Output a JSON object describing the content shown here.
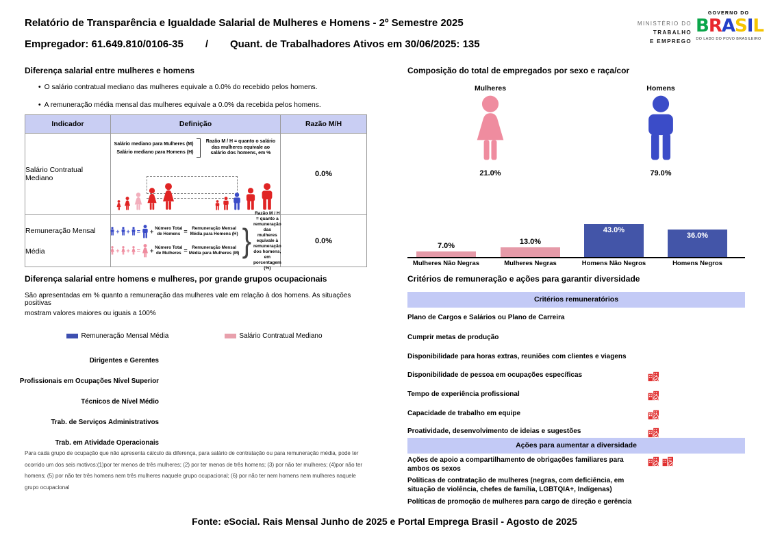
{
  "colors": {
    "band_lavender": "#c3caf6",
    "table_header_lavender": "#c9cef3",
    "table_border": "#9a9a9a",
    "bar_pink": "#e59aa8",
    "bar_blue": "#4355a8",
    "pictogram_pink": "#ef8c9f",
    "pictogram_blue": "#3b4cc8",
    "figure_red": "#e02424",
    "figure_light_pink": "#f2aebc",
    "building_icon_red": "#e03030",
    "legend_blue": "#3d4fb0",
    "legend_pink": "#e8a0ac"
  },
  "header": {
    "title": "Relatório de Transparência e Igualdade Salarial de Mulheres e Homens - 2º Semestre 2025",
    "employer": "Empregador: 61.649.810/0106-35",
    "separator": "/",
    "workers": "Quant. de Trabalhadores Ativos em 30/06/2025: 135",
    "ministry_line1": "MINISTÉRIO DO",
    "ministry_line2": "TRABALHO",
    "ministry_line3": "E EMPREGO",
    "gov_top": "GOVERNO DO",
    "brasil_letters": [
      "B",
      "R",
      "A",
      "S",
      "I",
      "L"
    ],
    "gov_bottom": "DO LADO DO POVO BRASILEIRO"
  },
  "salary_gap": {
    "title": "Diferença salarial entre mulheres e homens",
    "bullets": [
      "O salário contratual mediano das mulheres equivale a 0.0% do recebido pelos homens.",
      "A remuneração média mensal das mulheres equivale a 0.0% da recebida pelos homens."
    ],
    "table": {
      "headers": [
        "Indicador",
        "Definição",
        "Razão M/H"
      ],
      "row1": {
        "indicator": "Salário Contratual Mediano",
        "label_women": "Salário mediano para Mulheres (M)",
        "label_men": "Salário mediano para Homens (H)",
        "ratio_note": "Razão M / H = quanto o salário das mulheres equivale ao salário dos homens, em %",
        "ratio": "0.0%"
      },
      "row2": {
        "indicator": "Remuneração Mensal Média",
        "plus": "+",
        "equals": "=",
        "men_total": "Número Total de Homens",
        "men_result": "Remuneração Mensal Média para Homens (H)",
        "women_total": "Número Total de Mulheres",
        "women_result": "Remuneração Mensal Média para Mulheres (M)",
        "ratio_note": "Razão M / H = quanto a remuneração das mulheres equivale à remuneração dos homens, em porcentagem (%)",
        "ratio": "0.0%"
      }
    }
  },
  "composition": {
    "title": "Composição do total de empregados por sexo e raça/cor",
    "female_label": "Mulheres",
    "female_value": "21.0%",
    "male_label": "Homens",
    "male_value": "79.0%",
    "race_chart": {
      "categories": [
        "Mulheres Não Negras",
        "Mulheres Negras",
        "Homens Não Negros",
        "Homens Negros"
      ],
      "values": [
        7,
        13,
        43,
        36
      ],
      "labels": [
        "7.0%",
        "13.0%",
        "43.0%",
        "36.0%"
      ]
    }
  },
  "occupational": {
    "title": "Diferença salarial entre homens e mulheres, por grande grupos ocupacionais",
    "subtitle_line1": "São apresentadas em % quanto a remuneração das mulheres vale em relação à dos homens. As situações positivas",
    "subtitle_line2": "mostram valores maiores ou iguais a 100%",
    "legend": [
      {
        "label": "Remuneração Mensal Média"
      },
      {
        "label": "Salário Contratual Mediano"
      }
    ],
    "categories": [
      "Dirigentes e Gerentes",
      "Profissionais em Ocupações Nível Superior",
      "Técnicos de Nível Médio",
      "Trab. de Serviços Administrativos",
      "Trab. em Atividade Operacionais"
    ],
    "footnote": "Para cada grupo de ocupação que não apresenta cálculo da diferença, para salário de contratação ou para remuneração média, pode ter ocorrido um dos seis motivos:(1)por ter menos de três mulheres; (2) por ter menos de três homens; (3) por não ter mulheres; (4)por não ter homens; (5) por não ter três homens nem três mulheres naquele grupo ocupacional; (6) por não ter nem homens nem mulheres naquele grupo ocupacional"
  },
  "criteria": {
    "title": "Critérios de remuneração e ações para garantir diversidade",
    "band1": "Critérios remuneratórios",
    "items1": [
      {
        "label": "Plano de Cargos e Salários ou Plano de Carreira",
        "icons": 0
      },
      {
        "label": "Cumprir metas de produção",
        "icons": 0
      },
      {
        "label": "Disponibilidade para horas extras, reuniões com clientes e viagens",
        "icons": 0
      },
      {
        "label": "Disponibilidade de pessoa em ocupações específicas",
        "icons": 1
      },
      {
        "label": "Tempo de experiência profissional",
        "icons": 1
      },
      {
        "label": "Capacidade de trabalho em equipe",
        "icons": 1
      },
      {
        "label": "Proatividade, desenvolvimento de ideias e sugestões",
        "icons": 1
      }
    ],
    "band2": "Ações para aumentar a diversidade",
    "items2": [
      {
        "label": "Ações de apoio a compartilhamento de obrigações familiares para ambos os sexos",
        "icons": 2
      },
      {
        "label": "Políticas de contratação de mulheres (negras, com deficiência, em situação de violência, chefes de família, LGBTQIA+, Indígenas)",
        "icons": 0
      },
      {
        "label": "Políticas de promoção de mulheres para cargo de direção e gerência",
        "icons": 0
      }
    ]
  },
  "footer": "Fonte: eSocial. Rais Mensal Junho de 2025 e Portal Emprega Brasil - Agosto de 2025",
  "chart_data": [
    {
      "type": "pictogram",
      "title": "Composição do total de empregados por sexo e raça/cor",
      "categories": [
        "Mulheres",
        "Homens"
      ],
      "values": [
        21.0,
        79.0
      ],
      "value_labels": [
        "21.0%",
        "79.0%"
      ],
      "colors": [
        "#ef8c9f",
        "#3b4cc8"
      ]
    },
    {
      "type": "bar",
      "title": "Composição do total de empregados por sexo e raça/cor",
      "categories": [
        "Mulheres Não Negras",
        "Mulheres Negras",
        "Homens Não Negros",
        "Homens Negros"
      ],
      "values": [
        7.0,
        13.0,
        43.0,
        36.0
      ],
      "value_labels": [
        "7.0%",
        "13.0%",
        "43.0%",
        "36.0%"
      ],
      "bar_colors": [
        "#e59aa8",
        "#e59aa8",
        "#4355a8",
        "#4355a8"
      ],
      "xlabel": "",
      "ylabel": "",
      "ylim": [
        0,
        50
      ],
      "grid": false,
      "legend_position": "none"
    },
    {
      "type": "bar",
      "title": "Diferença salarial entre homens e mulheres, por grande grupos ocupacionais",
      "categories": [
        "Dirigentes e Gerentes",
        "Profissionais em Ocupações Nível Superior",
        "Técnicos de Nível Médio",
        "Trab. de Serviços Administrativos",
        "Trab. em Atividade Operacionais"
      ],
      "series": [
        {
          "name": "Remuneração Mensal Média",
          "color": "#3d4fb0",
          "values": [
            null,
            null,
            null,
            null,
            null
          ]
        },
        {
          "name": "Salário Contratual Mediano",
          "color": "#e8a0ac",
          "values": [
            null,
            null,
            null,
            null,
            null
          ]
        }
      ],
      "legend_position": "top",
      "grid": false
    }
  ]
}
